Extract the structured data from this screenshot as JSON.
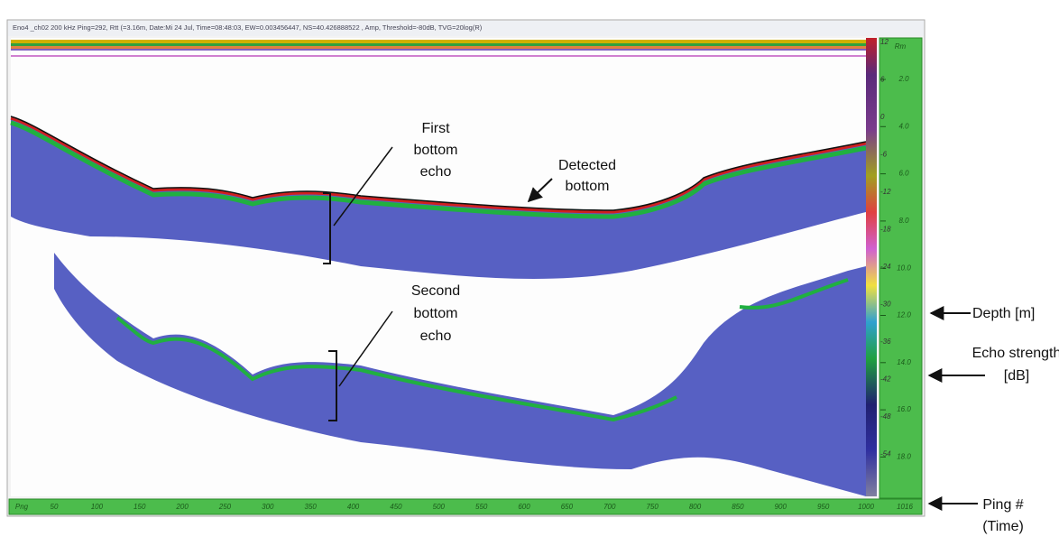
{
  "header": {
    "status_text": "Eno4 _ch02 200 kHz Ping=292, Rtt (=3.16m, Date:Mi 24 Jul, Time=08:48:03, EW=0.003456447, NS=40.426888522 , Amp, Threshold=-80dB, TVG=20log(R)"
  },
  "color_scale": {
    "labels": [
      "12",
      "6",
      "0",
      "-6",
      "-12",
      "-18",
      "-24",
      "-30",
      "-36",
      "-42",
      "-48",
      "-54"
    ]
  },
  "depth_axis": {
    "unit_label": "Rm",
    "labels": [
      "2.0",
      "4.0",
      "6.0",
      "8.0",
      "10.0",
      "12.0",
      "14.0",
      "16.0",
      "18.0"
    ]
  },
  "ping_axis": {
    "unit_label": "Png",
    "labels": [
      "50",
      "100",
      "150",
      "200",
      "250",
      "300",
      "350",
      "400",
      "450",
      "500",
      "550",
      "600",
      "650",
      "700",
      "750",
      "800",
      "850",
      "900",
      "950",
      "1000",
      "1016"
    ]
  },
  "annotations": {
    "first_bottom_echo": [
      "First",
      "bottom",
      "echo"
    ],
    "detected_bottom": [
      "Detected",
      "bottom"
    ],
    "second_bottom_echo": [
      "Second",
      "bottom",
      "echo"
    ],
    "depth": "Depth [m]",
    "echo_strength": [
      "Echo strength",
      "[dB]"
    ],
    "ping": [
      "Ping #",
      "(Time)"
    ]
  }
}
